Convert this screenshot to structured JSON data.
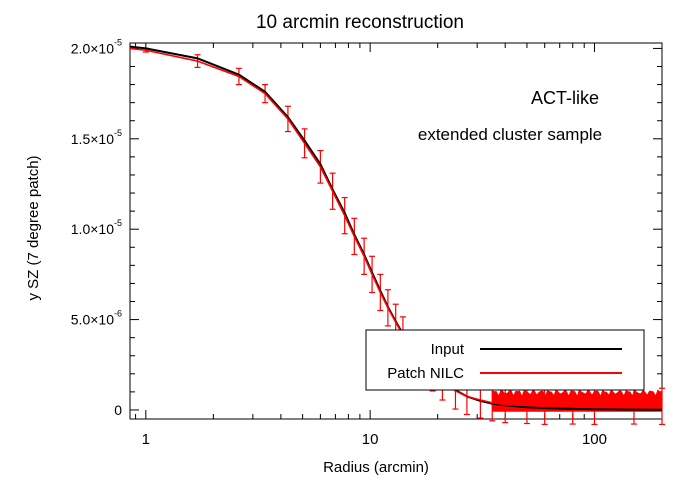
{
  "chart_data": {
    "type": "line",
    "title": "10 arcmin reconstruction",
    "xlabel": "Radius (arcmin)",
    "ylabel": "y SZ (7 degree patch)",
    "xscale": "log",
    "xlim": [
      0.85,
      200
    ],
    "ylim": [
      -5e-07,
      2.03e-05
    ],
    "xticks": [
      {
        "value": 1,
        "label": "1"
      },
      {
        "value": 10,
        "label": "10"
      },
      {
        "value": 100,
        "label": "100"
      }
    ],
    "yticks": [
      {
        "value": 0,
        "mant": "0",
        "exp": ""
      },
      {
        "value": 5e-06,
        "mant": "5.0×10",
        "exp": "-6"
      },
      {
        "value": 1e-05,
        "mant": "1.0×10",
        "exp": "-5"
      },
      {
        "value": 1.5e-05,
        "mant": "1.5×10",
        "exp": "-5"
      },
      {
        "value": 2e-05,
        "mant": "2.0×10",
        "exp": "-5"
      }
    ],
    "annotations": [
      "ACT-like",
      "extended cluster sample"
    ],
    "legend": {
      "position": "bottom-right",
      "entries": [
        "Input",
        "Patch NILC"
      ]
    },
    "series": [
      {
        "name": "Input",
        "color": "#000000",
        "x": [
          0.85,
          1.0,
          1.7,
          2.6,
          3.4,
          4.3,
          5.1,
          6.0,
          6.8,
          7.7,
          8.5,
          9.4,
          10.2,
          11.1,
          12.0,
          13.0,
          14.0,
          15.5,
          17.0,
          19.0,
          21.0,
          24.0,
          27.0,
          31.0,
          35.0,
          40.0,
          50.0,
          60.0,
          80.0,
          100.0,
          150.0,
          200.0
        ],
        "y": [
          2.01e-05,
          2e-05,
          1.945e-05,
          1.855e-05,
          1.76e-05,
          1.62e-05,
          1.49e-05,
          1.36e-05,
          1.22e-05,
          1.09e-05,
          9.7e-06,
          8.6e-06,
          7.6e-06,
          6.6e-06,
          5.7e-06,
          4.9e-06,
          4.2e-06,
          3.4e-06,
          2.8e-06,
          2.1e-06,
          1.6e-06,
          1.1e-06,
          7.5e-07,
          5e-07,
          3.5e-07,
          2.5e-07,
          1.5e-07,
          1e-07,
          6e-08,
          4e-08,
          2e-08,
          1e-08
        ]
      },
      {
        "name": "Patch NILC",
        "color": "#ff0000",
        "x": [
          0.85,
          1.0,
          1.7,
          2.6,
          3.4,
          4.3,
          5.1,
          6.0,
          6.8,
          7.7,
          8.5,
          9.4,
          10.2,
          11.1,
          12.0,
          13.0,
          14.0,
          15.5,
          17.0,
          19.0,
          21.0,
          24.0,
          27.0,
          31.0,
          35.0,
          40.0,
          50.0,
          60.0,
          80.0,
          100.0,
          150.0,
          200.0
        ],
        "y": [
          2e-05,
          1.99e-05,
          1.93e-05,
          1.845e-05,
          1.75e-05,
          1.61e-05,
          1.475e-05,
          1.345e-05,
          1.21e-05,
          1.075e-05,
          9.6e-06,
          8.5e-06,
          7.5e-06,
          6.5e-06,
          5.65e-06,
          4.85e-06,
          4.15e-06,
          3.35e-06,
          2.75e-06,
          2.05e-06,
          1.55e-06,
          1.05e-06,
          7.5e-07,
          5.5e-07,
          4e-07,
          3e-07,
          2.5e-07,
          2e-07,
          2.2e-07,
          2e-07,
          2.2e-07,
          2e-07
        ],
        "err": [
          5e-08,
          1e-07,
          3.5e-07,
          4.5e-07,
          5e-07,
          7e-07,
          8e-07,
          9e-07,
          1e-06,
          1e-06,
          1e-06,
          1e-06,
          1e-06,
          1e-06,
          1e-06,
          1e-06,
          1e-06,
          1e-06,
          1e-06,
          1e-06,
          1e-06,
          1e-06,
          1e-06,
          1e-06,
          1e-06,
          1e-06,
          1e-06,
          1e-06,
          1e-06,
          1e-06,
          1e-06,
          1e-06
        ],
        "noise_band": {
          "x_from": 35,
          "x_to": 200,
          "y_low": -1e-07,
          "y_high": 1e-06
        }
      }
    ]
  }
}
